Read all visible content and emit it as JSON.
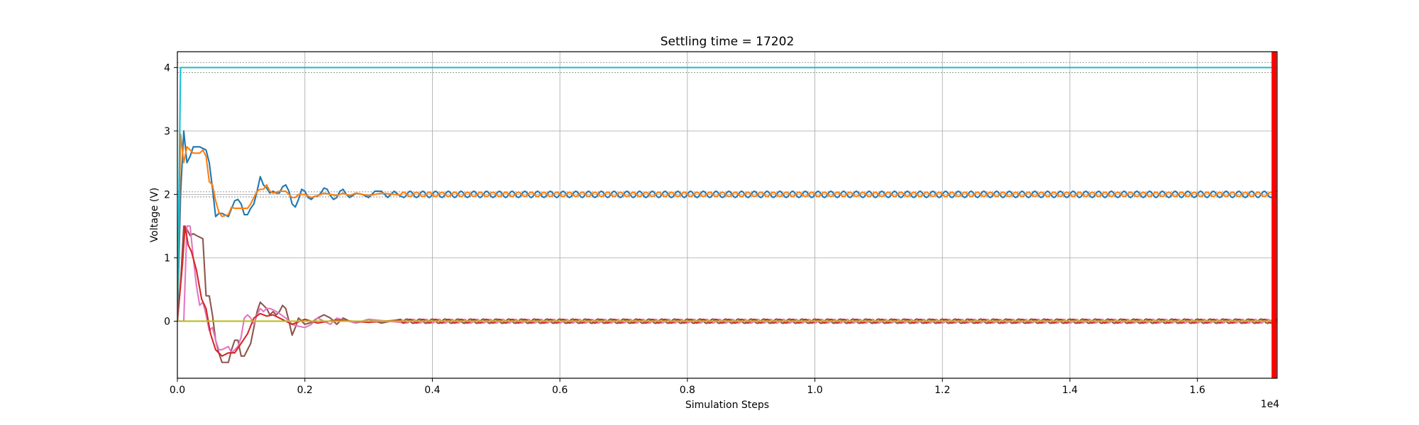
{
  "chart_data": {
    "type": "line",
    "title": "Settling time = 17202",
    "xlabel": "Simulation Steps",
    "ylabel": "Voltage (V)",
    "x_offset_label": "1e4",
    "xlim": [
      0,
      17250
    ],
    "ylim": [
      -0.9,
      4.25
    ],
    "x_ticks": [
      0,
      2000,
      4000,
      6000,
      8000,
      10000,
      12000,
      14000,
      16000
    ],
    "x_tick_labels": [
      "0.0",
      "0.2",
      "0.4",
      "0.6",
      "0.8",
      "1.0",
      "1.2",
      "1.4",
      "1.6"
    ],
    "y_ticks": [
      0,
      1,
      2,
      3,
      4
    ],
    "y_tick_labels": [
      "0",
      "1",
      "2",
      "3",
      "4"
    ],
    "grid": true,
    "settling_time": 17202,
    "settling_line_color": "#ff0000",
    "tolerance_bands": [
      {
        "center": 4.0,
        "lower": 3.92,
        "upper": 4.08
      },
      {
        "center": 2.0,
        "lower": 1.96,
        "upper": 2.04
      }
    ],
    "series": [
      {
        "color": "#1f77b4",
        "target": 2.0,
        "oscillation": {
          "amplitude": 0.05,
          "period": 200,
          "phase": 0
        },
        "transient": [
          [
            0,
            0.0
          ],
          [
            50,
            2.0
          ],
          [
            100,
            3.0
          ],
          [
            150,
            2.5
          ],
          [
            200,
            2.6
          ],
          [
            250,
            2.75
          ],
          [
            350,
            2.75
          ],
          [
            450,
            2.7
          ],
          [
            500,
            2.5
          ],
          [
            550,
            2.1
          ],
          [
            600,
            1.65
          ],
          [
            650,
            1.7
          ],
          [
            700,
            1.7
          ],
          [
            800,
            1.65
          ],
          [
            900,
            1.9
          ],
          [
            950,
            1.92
          ],
          [
            1000,
            1.85
          ],
          [
            1050,
            1.68
          ],
          [
            1100,
            1.68
          ],
          [
            1150,
            1.78
          ],
          [
            1200,
            1.85
          ],
          [
            1250,
            2.05
          ],
          [
            1300,
            2.28
          ],
          [
            1350,
            2.15
          ],
          [
            1400,
            2.1
          ],
          [
            1450,
            2.02
          ],
          [
            1500,
            2.05
          ],
          [
            1550,
            2.02
          ],
          [
            1600,
            2.02
          ],
          [
            1650,
            2.12
          ],
          [
            1700,
            2.15
          ],
          [
            1750,
            2.05
          ],
          [
            1800,
            1.85
          ],
          [
            1850,
            1.8
          ],
          [
            1900,
            1.92
          ],
          [
            1950,
            2.08
          ],
          [
            2000,
            2.05
          ],
          [
            2050,
            1.95
          ],
          [
            2100,
            1.92
          ],
          [
            2150,
            1.97
          ],
          [
            2200,
            1.97
          ],
          [
            2250,
            2.02
          ],
          [
            2300,
            2.1
          ],
          [
            2350,
            2.08
          ],
          [
            2400,
            1.98
          ],
          [
            2450,
            1.92
          ],
          [
            2500,
            1.95
          ],
          [
            2550,
            2.05
          ],
          [
            2600,
            2.08
          ],
          [
            2650,
            2.0
          ],
          [
            2700,
            1.95
          ],
          [
            2750,
            1.98
          ],
          [
            2800,
            2.02
          ],
          [
            2900,
            2.0
          ],
          [
            3000,
            1.95
          ],
          [
            3100,
            2.05
          ],
          [
            3200,
            2.05
          ],
          [
            3300,
            1.95
          ],
          [
            3400,
            2.05
          ],
          [
            3500,
            1.97
          ]
        ]
      },
      {
        "color": "#ff7f0e",
        "target": 2.0,
        "oscillation": {
          "amplitude": 0.035,
          "period": 200,
          "phase": 100
        },
        "transient": [
          [
            0,
            0.0
          ],
          [
            50,
            2.95
          ],
          [
            100,
            2.5
          ],
          [
            150,
            2.75
          ],
          [
            200,
            2.7
          ],
          [
            250,
            2.65
          ],
          [
            300,
            2.65
          ],
          [
            350,
            2.65
          ],
          [
            400,
            2.7
          ],
          [
            450,
            2.6
          ],
          [
            500,
            2.2
          ],
          [
            550,
            2.15
          ],
          [
            600,
            1.9
          ],
          [
            650,
            1.72
          ],
          [
            700,
            1.65
          ],
          [
            800,
            1.68
          ],
          [
            850,
            1.8
          ],
          [
            900,
            1.78
          ],
          [
            1000,
            1.78
          ],
          [
            1100,
            1.78
          ],
          [
            1150,
            1.85
          ],
          [
            1200,
            1.95
          ],
          [
            1250,
            2.05
          ],
          [
            1300,
            2.08
          ],
          [
            1350,
            2.08
          ],
          [
            1400,
            2.15
          ],
          [
            1450,
            2.05
          ],
          [
            1500,
            2.02
          ],
          [
            1600,
            2.05
          ],
          [
            1700,
            2.05
          ],
          [
            1800,
            1.95
          ],
          [
            1850,
            1.95
          ],
          [
            1900,
            2.0
          ],
          [
            2000,
            2.0
          ],
          [
            2100,
            1.95
          ],
          [
            2200,
            1.98
          ],
          [
            2300,
            2.02
          ],
          [
            2400,
            2.0
          ],
          [
            2500,
            1.98
          ],
          [
            2600,
            2.02
          ],
          [
            2700,
            1.98
          ],
          [
            2800,
            2.02
          ],
          [
            2900,
            2.0
          ],
          [
            3000,
            1.98
          ],
          [
            3200,
            2.02
          ],
          [
            3500,
            1.99
          ]
        ]
      },
      {
        "color": "#8c564b",
        "target": 0.0,
        "oscillation": {
          "amplitude": 0.035,
          "period": 200,
          "phase": 50
        },
        "transient": [
          [
            0,
            0.0
          ],
          [
            50,
            0.6
          ],
          [
            100,
            1.5
          ],
          [
            150,
            1.45
          ],
          [
            200,
            1.35
          ],
          [
            250,
            1.38
          ],
          [
            300,
            1.35
          ],
          [
            400,
            1.3
          ],
          [
            450,
            0.4
          ],
          [
            500,
            0.4
          ],
          [
            550,
            0.1
          ],
          [
            600,
            -0.3
          ],
          [
            650,
            -0.5
          ],
          [
            700,
            -0.65
          ],
          [
            800,
            -0.65
          ],
          [
            850,
            -0.45
          ],
          [
            900,
            -0.3
          ],
          [
            950,
            -0.3
          ],
          [
            1000,
            -0.55
          ],
          [
            1050,
            -0.55
          ],
          [
            1100,
            -0.45
          ],
          [
            1150,
            -0.35
          ],
          [
            1200,
            -0.1
          ],
          [
            1250,
            0.15
          ],
          [
            1300,
            0.3
          ],
          [
            1350,
            0.25
          ],
          [
            1400,
            0.2
          ],
          [
            1450,
            0.1
          ],
          [
            1500,
            0.15
          ],
          [
            1550,
            0.1
          ],
          [
            1600,
            0.15
          ],
          [
            1650,
            0.25
          ],
          [
            1700,
            0.2
          ],
          [
            1750,
            0.0
          ],
          [
            1800,
            -0.22
          ],
          [
            1850,
            -0.1
          ],
          [
            1900,
            0.05
          ],
          [
            2000,
            -0.05
          ],
          [
            2100,
            -0.02
          ],
          [
            2200,
            0.05
          ],
          [
            2300,
            0.1
          ],
          [
            2400,
            0.05
          ],
          [
            2500,
            -0.05
          ],
          [
            2600,
            0.05
          ],
          [
            2700,
            0.0
          ],
          [
            2800,
            -0.03
          ],
          [
            3000,
            0.03
          ],
          [
            3200,
            -0.03
          ],
          [
            3500,
            0.03
          ]
        ]
      },
      {
        "color": "#e377c2",
        "target": 0.0,
        "oscillation": {
          "amplitude": 0.03,
          "period": 200,
          "phase": 150
        },
        "transient": [
          [
            0,
            0.0
          ],
          [
            100,
            0.0
          ],
          [
            150,
            1.5
          ],
          [
            200,
            1.5
          ],
          [
            250,
            1.0
          ],
          [
            300,
            0.55
          ],
          [
            350,
            0.25
          ],
          [
            400,
            0.3
          ],
          [
            450,
            0.1
          ],
          [
            500,
            -0.15
          ],
          [
            550,
            -0.1
          ],
          [
            600,
            -0.3
          ],
          [
            650,
            -0.45
          ],
          [
            700,
            -0.45
          ],
          [
            800,
            -0.4
          ],
          [
            850,
            -0.5
          ],
          [
            900,
            -0.45
          ],
          [
            950,
            -0.4
          ],
          [
            1000,
            -0.25
          ],
          [
            1050,
            0.05
          ],
          [
            1100,
            0.1
          ],
          [
            1150,
            0.05
          ],
          [
            1200,
            -0.05
          ],
          [
            1250,
            0.1
          ],
          [
            1300,
            0.2
          ],
          [
            1350,
            0.15
          ],
          [
            1400,
            0.2
          ],
          [
            1450,
            0.2
          ],
          [
            1500,
            0.18
          ],
          [
            1600,
            0.12
          ],
          [
            1700,
            0.05
          ],
          [
            1800,
            -0.05
          ],
          [
            1900,
            -0.08
          ],
          [
            2000,
            -0.1
          ],
          [
            2100,
            -0.05
          ],
          [
            2200,
            0.05
          ],
          [
            2300,
            0.0
          ],
          [
            2400,
            -0.05
          ],
          [
            2500,
            0.05
          ],
          [
            2600,
            0.02
          ],
          [
            2800,
            -0.03
          ],
          [
            3000,
            0.03
          ],
          [
            3500,
            -0.02
          ]
        ]
      },
      {
        "color": "#d62728",
        "target": 0.0,
        "oscillation": {
          "amplitude": 0.03,
          "period": 200,
          "phase": 0
        },
        "transient": [
          [
            0,
            0.0
          ],
          [
            80,
            0.9
          ],
          [
            120,
            1.5
          ],
          [
            170,
            1.2
          ],
          [
            220,
            1.1
          ],
          [
            300,
            0.8
          ],
          [
            380,
            0.35
          ],
          [
            450,
            0.2
          ],
          [
            520,
            -0.2
          ],
          [
            600,
            -0.45
          ],
          [
            700,
            -0.55
          ],
          [
            800,
            -0.5
          ],
          [
            900,
            -0.5
          ],
          [
            1000,
            -0.35
          ],
          [
            1100,
            -0.2
          ],
          [
            1200,
            0.05
          ],
          [
            1300,
            0.12
          ],
          [
            1400,
            0.08
          ],
          [
            1500,
            0.1
          ],
          [
            1600,
            0.05
          ],
          [
            1800,
            -0.05
          ],
          [
            2000,
            0.03
          ],
          [
            2200,
            -0.03
          ],
          [
            2500,
            0.02
          ],
          [
            3000,
            -0.02
          ],
          [
            3500,
            0.02
          ]
        ]
      },
      {
        "color": "#bcbd22",
        "target": 0.0,
        "oscillation": {
          "amplitude": 0.0,
          "period": 200,
          "phase": 0
        },
        "transient": [
          [
            0,
            0.0
          ],
          [
            17250,
            0.0
          ]
        ]
      },
      {
        "color": "#17becf",
        "target": 4.0,
        "oscillation": {
          "amplitude": 0.0,
          "period": 200,
          "phase": 0
        },
        "transient": [
          [
            0,
            0.0
          ],
          [
            50,
            4.0
          ],
          [
            17250,
            4.0
          ]
        ]
      }
    ]
  }
}
